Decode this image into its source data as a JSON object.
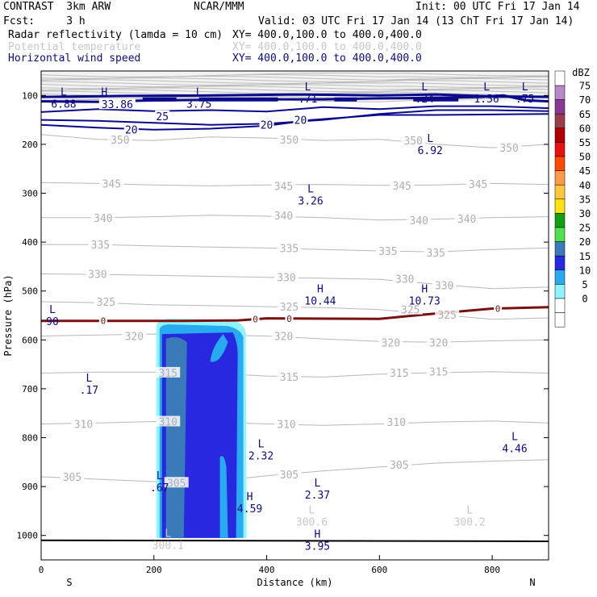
{
  "header": {
    "model": "CONTRAST  3km ARW",
    "org": "NCAR/MMM",
    "init": "Init: 00 UTC Fri 17 Jan 14",
    "fcst": "Fcst:     3 h",
    "valid": "Valid: 03 UTC Fri 17 Jan 14 (13 ChT Fri 17 Jan 14)",
    "fields": [
      {
        "label": "Radar reflectivity (lamda = 10 cm)",
        "xy": "XY= 400.0,100.0 to 400.0,400.0",
        "color": "#000000"
      },
      {
        "label": "Potential temperature",
        "xy": "XY= 400.0,100.0 to 400.0,400.0",
        "color": "#c8c8c8"
      },
      {
        "label": "Horizontal wind speed",
        "xy": "XY= 400.0,100.0 to 400.0,400.0",
        "color": "#0a0a8a"
      }
    ]
  },
  "chart_data": {
    "type": "cross-section",
    "xlabel": "Distance (km)",
    "ylabel": "Pressure (hPa)",
    "xlim": [
      0,
      900
    ],
    "ylim": [
      1050,
      50
    ],
    "xticks": [
      0,
      200,
      400,
      600,
      800
    ],
    "yticks": [
      100,
      200,
      300,
      400,
      500,
      600,
      700,
      800,
      900,
      1000
    ],
    "endpoints": {
      "left": "S",
      "right": "N"
    },
    "colorbar": {
      "unit": "dBZ",
      "levels": [
        "75",
        "70",
        "65",
        "60",
        "55",
        "50",
        "45",
        "40",
        "35",
        "30",
        "25",
        "20",
        "15",
        "10",
        "5",
        "0"
      ],
      "colors": [
        "#b988c8",
        "#8a3896",
        "#9a3c4c",
        "#b00000",
        "#e81010",
        "#ff4a00",
        "#ff9a48",
        "#ffc83c",
        "#ffe010",
        "#10a010",
        "#50e050",
        "#3a7ab8",
        "#2828e0",
        "#28aaf0",
        "#90f4ff",
        "#ffffff",
        "#ffffff"
      ]
    },
    "theta_labels": [
      {
        "v": "350",
        "x": 140,
        "p": 190
      },
      {
        "v": "350",
        "x": 440,
        "p": 190
      },
      {
        "v": "350",
        "x": 660,
        "p": 192
      },
      {
        "v": "350",
        "x": 830,
        "p": 207
      },
      {
        "v": "345",
        "x": 125,
        "p": 280
      },
      {
        "v": "345",
        "x": 430,
        "p": 285
      },
      {
        "v": "345",
        "x": 640,
        "p": 284
      },
      {
        "v": "345",
        "x": 775,
        "p": 281
      },
      {
        "v": "340",
        "x": 110,
        "p": 350
      },
      {
        "v": "340",
        "x": 430,
        "p": 345
      },
      {
        "v": "340",
        "x": 670,
        "p": 355
      },
      {
        "v": "340",
        "x": 755,
        "p": 352
      },
      {
        "v": "335",
        "x": 105,
        "p": 405
      },
      {
        "v": "335",
        "x": 440,
        "p": 412
      },
      {
        "v": "335",
        "x": 615,
        "p": 418
      },
      {
        "v": "335",
        "x": 700,
        "p": 421
      },
      {
        "v": "330",
        "x": 100,
        "p": 465
      },
      {
        "v": "330",
        "x": 435,
        "p": 472
      },
      {
        "v": "330",
        "x": 645,
        "p": 475
      },
      {
        "v": "330",
        "x": 715,
        "p": 488
      },
      {
        "v": "325",
        "x": 115,
        "p": 522
      },
      {
        "v": "325",
        "x": 440,
        "p": 532
      },
      {
        "v": "325",
        "x": 655,
        "p": 538
      },
      {
        "v": "325",
        "x": 720,
        "p": 548
      },
      {
        "v": "320",
        "x": 165,
        "p": 592
      },
      {
        "v": "320",
        "x": 430,
        "p": 592
      },
      {
        "v": "320",
        "x": 620,
        "p": 605
      },
      {
        "v": "320",
        "x": 705,
        "p": 605
      },
      {
        "v": "315",
        "x": 225,
        "p": 667
      },
      {
        "v": "315",
        "x": 440,
        "p": 675
      },
      {
        "v": "315",
        "x": 635,
        "p": 667
      },
      {
        "v": "315",
        "x": 705,
        "p": 665
      },
      {
        "v": "310",
        "x": 75,
        "p": 772
      },
      {
        "v": "310",
        "x": 225,
        "p": 767
      },
      {
        "v": "310",
        "x": 435,
        "p": 772
      },
      {
        "v": "310",
        "x": 630,
        "p": 768
      },
      {
        "v": "305",
        "x": 55,
        "p": 880
      },
      {
        "v": "305",
        "x": 240,
        "p": 892
      },
      {
        "v": "305",
        "x": 440,
        "p": 875
      },
      {
        "v": "305",
        "x": 635,
        "p": 855
      }
    ],
    "wind_labels": [
      {
        "v": "33.86",
        "x": 135,
        "p": 118
      },
      {
        "v": "25",
        "x": 215,
        "p": 142
      },
      {
        "v": "20",
        "x": 160,
        "p": 170
      },
      {
        "v": "20",
        "x": 400,
        "p": 160
      },
      {
        "v": "20",
        "x": 460,
        "p": 150
      }
    ],
    "extrema": [
      {
        "kind": "L",
        "v": "6.88",
        "x": 40,
        "p": 100,
        "color": "#0a0a8a"
      },
      {
        "kind": "H",
        "v": "",
        "x": 112,
        "p": 100,
        "color": "#0a0a8a"
      },
      {
        "kind": "L",
        "v": "3.75",
        "x": 280,
        "p": 100,
        "color": "#0a0a8a"
      },
      {
        "kind": "L",
        "v": ".71",
        "x": 473,
        "p": 90,
        "color": "#0a0a8a"
      },
      {
        "kind": "L",
        "v": ".24",
        "x": 680,
        "p": 90,
        "color": "#0a0a8a"
      },
      {
        "kind": "L",
        "v": "1.56",
        "x": 790,
        "p": 90,
        "color": "#0a0a8a"
      },
      {
        "kind": "L",
        "v": ".75",
        "x": 858,
        "p": 90,
        "color": "#0a0a8a"
      },
      {
        "kind": "L",
        "v": "6.92",
        "x": 690,
        "p": 195,
        "color": "#0a0a8a"
      },
      {
        "kind": "L",
        "v": "3.26",
        "x": 478,
        "p": 298,
        "color": "#0a0a8a"
      },
      {
        "kind": "H",
        "v": "10.44",
        "x": 495,
        "p": 503,
        "color": "#0a0a8a"
      },
      {
        "kind": "H",
        "v": "10.73",
        "x": 680,
        "p": 503,
        "color": "#0a0a8a"
      },
      {
        "kind": "L",
        "v": "90",
        "x": 20,
        "p": 545,
        "color": "#0a0a8a"
      },
      {
        "kind": "L",
        "v": ".17",
        "x": 85,
        "p": 685,
        "color": "#0a0a8a"
      },
      {
        "kind": "L",
        "v": "2.32",
        "x": 390,
        "p": 820,
        "color": "#0a0a8a"
      },
      {
        "kind": "L",
        "v": "4.46",
        "x": 840,
        "p": 805,
        "color": "#0a0a8a"
      },
      {
        "kind": "L",
        "v": ".67",
        "x": 210,
        "p": 885,
        "color": "#0a0a8a"
      },
      {
        "kind": "H",
        "v": "4.59",
        "x": 370,
        "p": 928,
        "color": "#0a0a8a"
      },
      {
        "kind": "L",
        "v": "2.37",
        "x": 490,
        "p": 900,
        "color": "#0a0a8a"
      },
      {
        "kind": "L",
        "v": "300.6",
        "x": 480,
        "p": 955,
        "color": "#c8c8c8"
      },
      {
        "kind": "L",
        "v": "300.2",
        "x": 760,
        "p": 955,
        "color": "#c8c8c8"
      },
      {
        "kind": "L",
        "v": "300.1",
        "x": 225,
        "p": 1003,
        "color": "#c8c8c8"
      },
      {
        "kind": "H",
        "v": "3.95",
        "x": 490,
        "p": 1005,
        "color": "#0a0a8a"
      }
    ],
    "zero_line": {
      "label": "0",
      "points": [
        [
          0,
          561
        ],
        [
          250,
          561
        ],
        [
          350,
          560
        ],
        [
          400,
          556
        ],
        [
          600,
          557
        ],
        [
          700,
          546
        ],
        [
          800,
          536
        ],
        [
          900,
          533
        ]
      ],
      "label_x": [
        110,
        380,
        440,
        810
      ]
    },
    "radar_cell": {
      "x": [
        210,
        360
      ],
      "p": [
        565,
        1005
      ]
    }
  }
}
